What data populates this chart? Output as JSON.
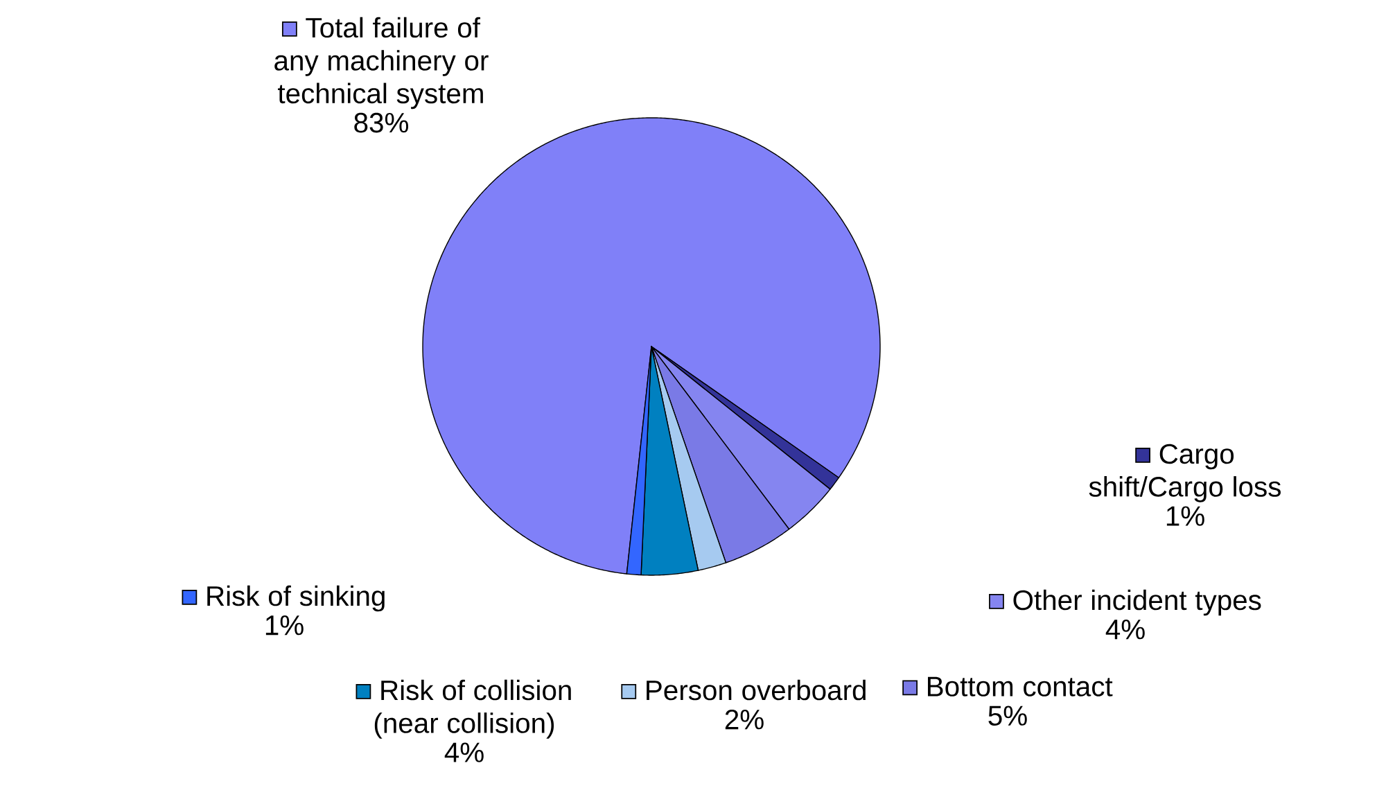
{
  "chart_data": {
    "type": "pie",
    "categories": [
      "Total failure of any machinery or technical system",
      "Cargo shift/Cargo loss",
      "Other incident types",
      "Bottom contact",
      "Person overboard",
      "Risk of collision (near collision)",
      "Risk of sinking"
    ],
    "values": [
      83,
      1,
      4,
      5,
      2,
      4,
      1
    ],
    "value_labels": [
      "83%",
      "1%",
      "4%",
      "5%",
      "2%",
      "4%",
      "1%"
    ],
    "colors": [
      "#8080f8",
      "#333399",
      "#8585f0",
      "#7a7ae6",
      "#a6caf0",
      "#0080c0",
      "#3366ff"
    ],
    "legend": "right"
  }
}
